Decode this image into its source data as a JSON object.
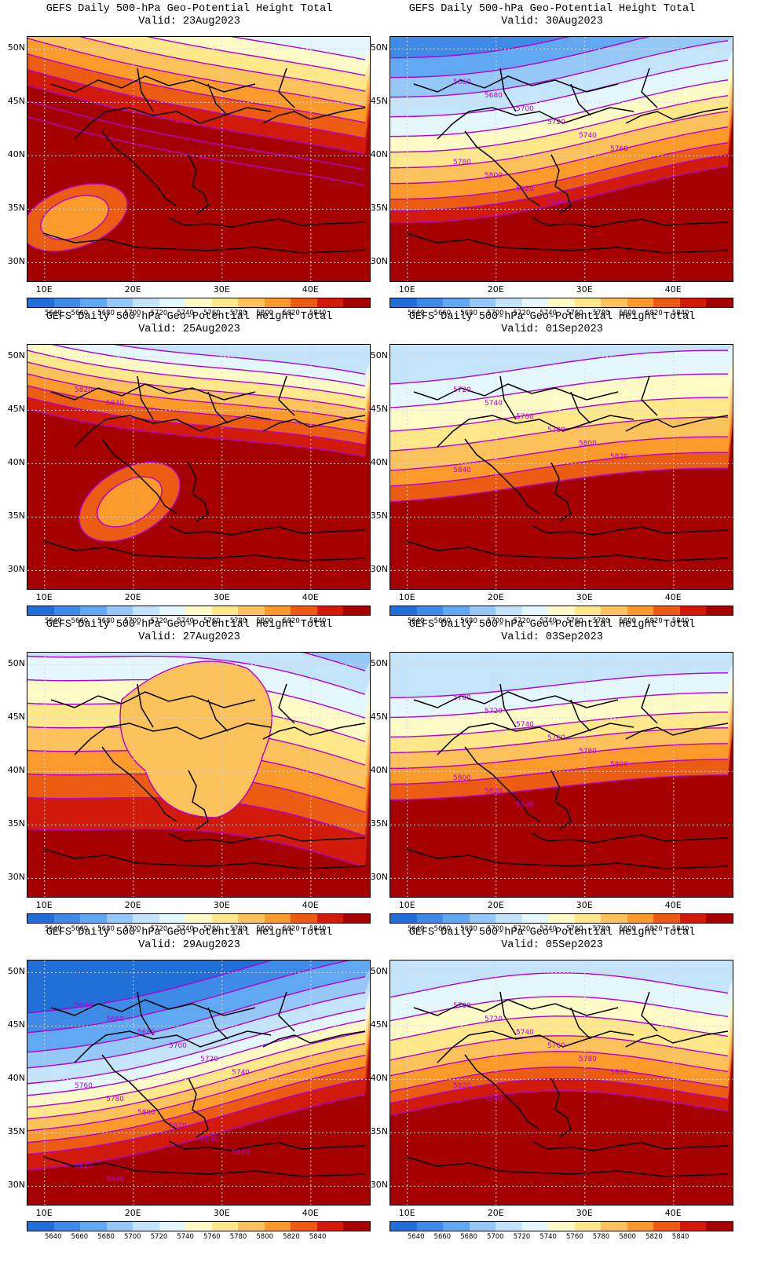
{
  "title_prefix": "GEFS Daily 500-hPa Geo-Potential Height Total",
  "lat_labels": [
    "50N",
    "45N",
    "40N",
    "35N",
    "30N"
  ],
  "lon_labels": [
    "10E",
    "20E",
    "30E",
    "40E"
  ],
  "colorbar": {
    "colors": [
      "#1f6fd6",
      "#3d8be6",
      "#60a8f2",
      "#96c8f7",
      "#c3e4fb",
      "#e4f7fd",
      "#fefbc6",
      "#fee88a",
      "#fbc15a",
      "#f99a2a",
      "#ec5b12",
      "#d21a0a",
      "#a50000"
    ],
    "labels": [
      "5640",
      "5660",
      "5680",
      "5700",
      "5720",
      "5740",
      "5760",
      "5780",
      "5800",
      "5820",
      "5840"
    ]
  },
  "panels": [
    {
      "id": "p1",
      "title": "GEFS Daily 500-hPa Geo-Potential Height Total",
      "valid": "Valid: 23Aug2023",
      "contour_labels": []
    },
    {
      "id": "p2",
      "title": "GEFS Daily 500-hPa Geo-Potential Height Total",
      "valid": "Valid: 30Aug2023",
      "contour_labels": [
        "5660",
        "5680",
        "5700",
        "5720",
        "5740",
        "5760",
        "5780",
        "5800",
        "5820",
        "5840"
      ]
    },
    {
      "id": "p3",
      "title": "GEFS Daily 500-hPa Geo-Potential Height Total",
      "valid": "Valid: 25Aug2023",
      "contour_labels": [
        "5820",
        "5840"
      ]
    },
    {
      "id": "p4",
      "title": "GEFS Daily 500-hPa Geo-Potential Height Total",
      "valid": "Valid: 01Sep2023",
      "contour_labels": [
        "5720",
        "5740",
        "5760",
        "5780",
        "5800",
        "5820",
        "5840"
      ]
    },
    {
      "id": "p5",
      "title": "GEFS Daily 500-hPa Geo-Potential Height Total",
      "valid": "Valid: 27Aug2023",
      "contour_labels": []
    },
    {
      "id": "p6",
      "title": "GEFS Daily 500-hPa Geo-Potential Height Total",
      "valid": "Valid: 03Sep2023",
      "contour_labels": [
        "5700",
        "5720",
        "5740",
        "5760",
        "5780",
        "5800",
        "5800",
        "5820",
        "5840"
      ]
    },
    {
      "id": "p7",
      "title": "GEFS Daily 500-hPa Geo-Potential Height Total",
      "valid": "Valid: 29Aug2023",
      "contour_labels": [
        "5640",
        "5660",
        "5680",
        "5700",
        "5720",
        "5740",
        "5760",
        "5780",
        "5800",
        "5820",
        "5840",
        "5800",
        "5820",
        "5840"
      ]
    },
    {
      "id": "p8",
      "title": "GEFS Daily 500-hPa Geo-Potential Height Total",
      "valid": "Valid: 05Sep2023",
      "contour_labels": [
        "5700",
        "5720",
        "5740",
        "5760",
        "5780",
        "5800",
        "5820",
        "5840"
      ]
    }
  ]
}
